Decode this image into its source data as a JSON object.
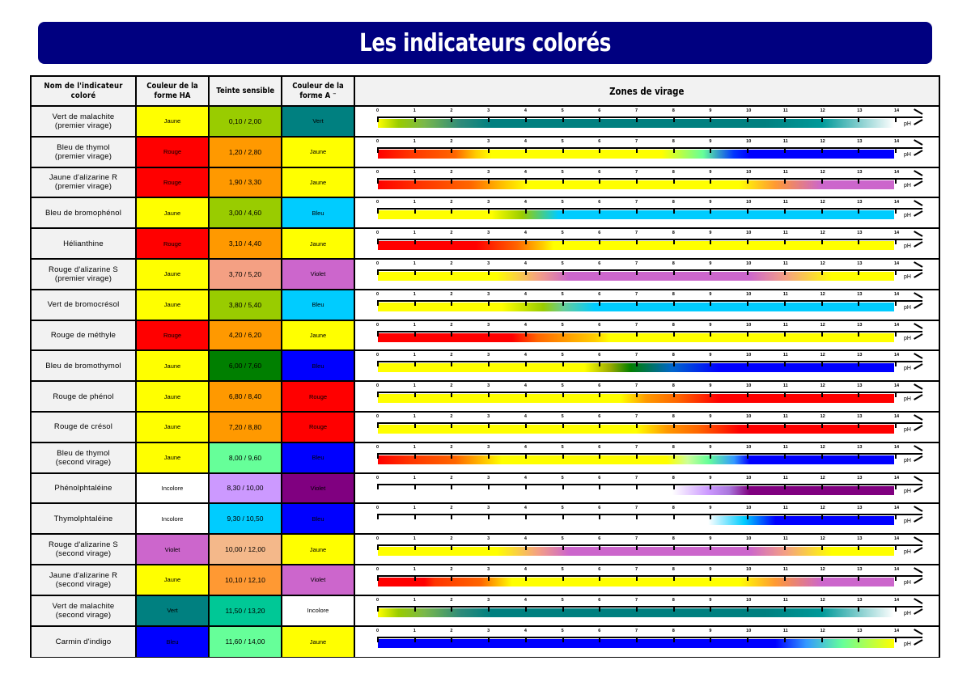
{
  "title": "Les indicateurs colorés",
  "headers": {
    "name": "Nom de l'indicateur coloré",
    "ha": "Couleur de la forme HA",
    "teinte": "Teinte sensible",
    "a": "Couleur de la forme A ⁻",
    "zone": "Zones de virage"
  },
  "axis": {
    "ticks": [
      "0",
      "1",
      "2",
      "3",
      "4",
      "5",
      "6",
      "7",
      "8",
      "9",
      "10",
      "11",
      "12",
      "13",
      "14"
    ],
    "unit": "pH"
  },
  "colors": {
    "title_bg": "#000080",
    "Jaune": "#FFFF00",
    "Rouge": "#FF0000",
    "Vert": "#008080",
    "Bleu_clair": "#00CCFF",
    "Bleu": "#0000FF",
    "Violet": "#CC66CC",
    "Violet_fonce": "#800080",
    "Incolore": "#FFFFFF"
  },
  "rows": [
    {
      "name_l1": "Vert de malachite",
      "name_l2": "(premier virage)",
      "ha": "Jaune",
      "ha_color": "#FFFF00",
      "teinte": "0,10  /  2,00",
      "teinte_color": "#99CC00",
      "a": "Vert",
      "a_color": "#008080",
      "zone": {
        "from": 0.1,
        "to": 2.0
      },
      "gradient": "linear-gradient(to right,#FFFF00 0%,#99CC00 4%,#7AB84A 9%,#2E8B7A 16%,#008080 22%,#008080 75%,#009999 86%,#FFFFFF 100%)"
    },
    {
      "name_l1": "Bleu de thymol",
      "name_l2": "(premier virage)",
      "ha": "Rouge",
      "ha_color": "#FF0000",
      "teinte": "1,20  /  2,80",
      "teinte_color": "#FF9900",
      "a": "Jaune",
      "a_color": "#FFFF00",
      "zone": {
        "from": 1.2,
        "to": 2.8
      },
      "gradient": "linear-gradient(to right,#FF0000 0%,#FF3300 6%,#FF6600 15%,#FFCC00 19%,#FFFF00 22%,#FFFF00 55%,#66FF99 63%,#0033FF 69%,#0000FF 72%,#0000FF 100%)"
    },
    {
      "name_l1": "Jaune d'alizarine R",
      "name_l2": "(premier virage)",
      "ha": "Rouge",
      "ha_color": "#FF0000",
      "teinte": "1,90  /  3,30",
      "teinte_color": "#FF9900",
      "a": "Jaune",
      "a_color": "#FFFF00",
      "zone": {
        "from": 1.9,
        "to": 3.3
      },
      "gradient": "linear-gradient(to right,#FF0000 0%,#FF3300 8%,#FF6600 18%,#FFCC00 25%,#FFFF00 29%,#FFFF00 70%,#FF9933 77%,#CC66CC 86%,#CC66CC 100%)"
    },
    {
      "name_l1": "Bleu de bromophénol",
      "name_l2": "",
      "ha": "Jaune",
      "ha_color": "#FFFF00",
      "teinte": "3,00  /  4,60",
      "teinte_color": "#99CC00",
      "a": "Bleu",
      "a_color": "#00CCFF",
      "zone": {
        "from": 3.0,
        "to": 4.6
      },
      "gradient": "linear-gradient(to right,#FFFF00 0%,#FFFF00 22%,#99CC00 28%,#00CCFF 35%,#00CCFF 100%)"
    },
    {
      "name_l1": "Hélianthine",
      "name_l2": "",
      "ha": "Rouge",
      "ha_color": "#FF0000",
      "teinte": "3,10  /  4,40",
      "teinte_color": "#FF9900",
      "a": "Jaune",
      "a_color": "#FFFF00",
      "zone": {
        "from": 3.1,
        "to": 4.4
      },
      "gradient": "linear-gradient(to right,#FF0000 0%,#FF0000 19%,#FF6600 27%,#FFCC00 32%,#FFFF00 34%,#FFFF00 100%)"
    },
    {
      "name_l1": "Rouge d'alizarine S",
      "name_l2": "(premier virage)",
      "ha": "Jaune",
      "ha_color": "#FFFF00",
      "teinte": "3,70  /  5,20",
      "teinte_color": "#F4A083",
      "a": "Violet",
      "a_color": "#CC66CC",
      "zone": {
        "from": 3.7,
        "to": 5.2
      },
      "gradient": "linear-gradient(to right,#FFFF00 0%,#FFFF00 23%,#F4A083 31%,#CC66CC 37%,#CC66CC 72%,#F4A083 79%,#FFFF00 88%,#FFFF00 100%)"
    },
    {
      "name_l1": "Vert de bromocrésol",
      "name_l2": "",
      "ha": "Jaune",
      "ha_color": "#FFFF00",
      "teinte": "3,80  /  5,40",
      "teinte_color": "#99CC00",
      "a": "Bleu",
      "a_color": "#00CCFF",
      "zone": {
        "from": 3.8,
        "to": 5.4
      },
      "gradient": "linear-gradient(to right,#FFFF00 0%,#FFFF00 24%,#99CC00 32%,#66CC99 36%,#00CCFF 42%,#00CCFF 100%)"
    },
    {
      "name_l1": "Rouge de méthyle",
      "name_l2": "",
      "ha": "Rouge",
      "ha_color": "#FF0000",
      "teinte": "4,20  /  6,20",
      "teinte_color": "#FF9900",
      "a": "Jaune",
      "a_color": "#FFFF00",
      "zone": {
        "from": 4.2,
        "to": 6.2
      },
      "gradient": "linear-gradient(to right,#FF0000 0%,#FF0000 26%,#FF6600 31%,#FFAA00 38%,#FFCC00 42%,#FFFF00 45%,#FFFF00 100%)"
    },
    {
      "name_l1": "Bleu de bromothymol",
      "name_l2": "",
      "ha": "Jaune",
      "ha_color": "#FFFF00",
      "teinte": "6,00  /  7,60",
      "teinte_color": "#007F00",
      "a": "Bleu",
      "a_color": "#0000FF",
      "zone": {
        "from": 6.0,
        "to": 7.6
      },
      "gradient": "linear-gradient(to right,#FFFF00 0%,#FFFF00 40%,#99AA00 45%,#007F00 49%,#0066CC 57%,#0000FF 66%,#0000FF 100%)"
    },
    {
      "name_l1": "Rouge de phénol",
      "name_l2": "",
      "ha": "Jaune",
      "ha_color": "#FFFF00",
      "teinte": "6,80  /  8,40",
      "teinte_color": "#FF9900",
      "a": "Rouge",
      "a_color": "#FF0000",
      "zone": {
        "from": 6.8,
        "to": 8.4
      },
      "gradient": "linear-gradient(to right,#FFFF00 0%,#FFFF00 47%,#FF9900 52%,#FF6600 58%,#FF0000 66%,#FF0000 100%)"
    },
    {
      "name_l1": "Rouge de crésol",
      "name_l2": "",
      "ha": "Jaune",
      "ha_color": "#FFFF00",
      "teinte": "7,20  /  8,80",
      "teinte_color": "#FF9900",
      "a": "Rouge",
      "a_color": "#FF0000",
      "zone": {
        "from": 7.2,
        "to": 8.8
      },
      "gradient": "linear-gradient(to right,#FFFF00 0%,#FFFF00 50%,#FF9900 56%,#FF6600 62%,#FF0000 70%,#FF0000 100%)"
    },
    {
      "name_l1": "Bleu de thymol",
      "name_l2": "(second virage)",
      "ha": "Jaune",
      "ha_color": "#FFFF00",
      "teinte": "8,00  /  9,60",
      "teinte_color": "#66FF99",
      "a": "Bleu",
      "a_color": "#0000FF",
      "zone": {
        "from": 8.0,
        "to": 9.6
      },
      "gradient": "linear-gradient(to right,#FF0000 0%,#FF3300 6%,#FF6600 15%,#FFCC00 21%,#FFFF00 24%,#FFFF00 56%,#CCFF99 60%,#66FF99 64%,#3399FF 69%,#0000FF 72%,#0000FF 100%)"
    },
    {
      "name_l1": "Phénolphtaléine",
      "name_l2": "",
      "ha": "Incolore",
      "ha_color": "#FFFFFF",
      "teinte": "8,30  /  10,00",
      "teinte_color": "#CC99FF",
      "a": "Violet",
      "a_color": "#800080",
      "zone": {
        "from": 8.3,
        "to": 10.0
      },
      "gradient": "linear-gradient(to right,#FFFFFF 0%,#FFFFFF 57%,#CC99FF 64%,#AA77DD 68%,#800080 72%,#800080 100%)"
    },
    {
      "name_l1": "Thymolphtaléine",
      "name_l2": "",
      "ha": "Incolore",
      "ha_color": "#FFFFFF",
      "teinte": "9,30  /  10,50",
      "teinte_color": "#00CCFF",
      "a": "Bleu",
      "a_color": "#0000FF",
      "zone": {
        "from": 9.3,
        "to": 10.5
      },
      "gradient": "linear-gradient(to right,#FFFFFF 0%,#FFFFFF 64%,#00CCFF 71%,#0000FF 77%,#0000FF 100%)"
    },
    {
      "name_l1": "Rouge d'alizarine S",
      "name_l2": "(second virage)",
      "ha": "Violet",
      "ha_color": "#CC66CC",
      "teinte": "10,00  /  12,00",
      "teinte_color": "#F4B88A",
      "a": "Jaune",
      "a_color": "#FFFF00",
      "zone": {
        "from": 10.0,
        "to": 12.0
      },
      "gradient": "linear-gradient(to right,#FFFF00 0%,#FFFF00 23%,#F4A083 31%,#CC66CC 37%,#CC66CC 72%,#F4A083 79%,#FFFF00 88%,#FFFF00 100%)"
    },
    {
      "name_l1": "Jaune d'alizarine R",
      "name_l2": "(second virage)",
      "ha": "Jaune",
      "ha_color": "#FFFF00",
      "teinte": "10,10  /  12,10",
      "teinte_color": "#FF9933",
      "a": "Violet",
      "a_color": "#CC66CC",
      "zone": {
        "from": 10.1,
        "to": 12.1
      },
      "gradient": "linear-gradient(to right,#FF0000 0%,#FF0000 9%,#FF3300 11%,#FF6600 20%,#FFFF00 26%,#FFFF00 70%,#FF9933 77%,#CC66CC 86%,#CC66CC 100%)"
    },
    {
      "name_l1": "Vert de malachite",
      "name_l2": "(second virage)",
      "ha": "Vert",
      "ha_color": "#008080",
      "teinte": "11,50  /  13,20",
      "teinte_color": "#00C896",
      "a": "Incolore",
      "a_color": "#FFFFFF",
      "zone": {
        "from": 11.5,
        "to": 13.2
      },
      "gradient": "linear-gradient(to right,#FFFF00 0%,#99CC00 4%,#7AB84A 9%,#2E8B7A 16%,#008080 22%,#008080 75%,#009999 86%,#FFFFFF 100%)"
    },
    {
      "name_l1": "Carmin d'indigo",
      "name_l2": "",
      "ha": "Bleu",
      "ha_color": "#0000FF",
      "teinte": "11,60  /  14,00",
      "teinte_color": "#66FF99",
      "a": "Jaune",
      "a_color": "#FFFF00",
      "zone": {
        "from": 11.6,
        "to": 14.0
      },
      "gradient": "linear-gradient(to right,#0000FF 0%,#0000FF 77%,#3399FF 83%,#66FF99 90%,#FFFF00 100%)"
    }
  ]
}
